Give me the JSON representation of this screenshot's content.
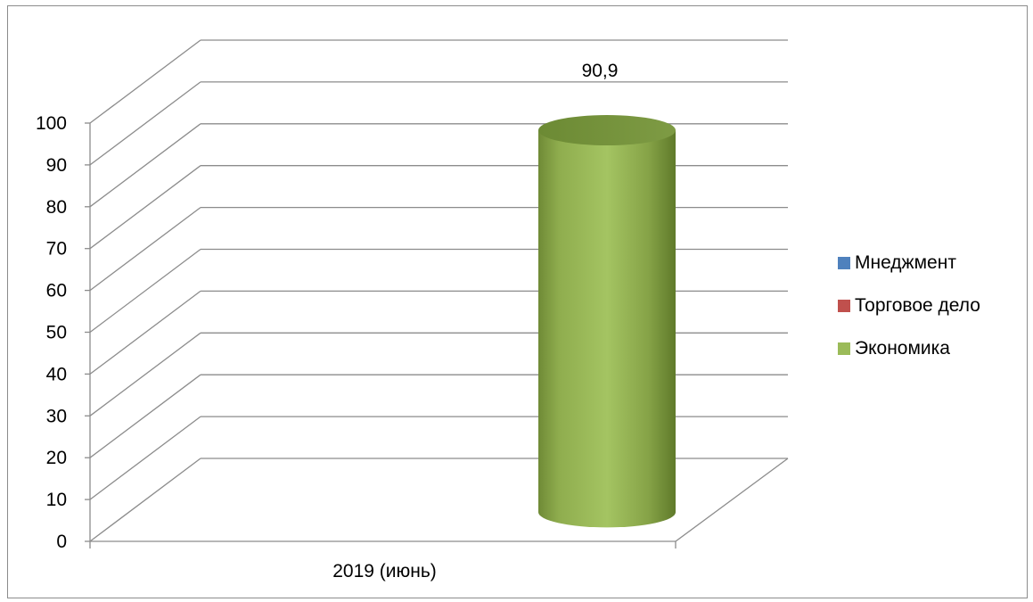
{
  "chart_data": {
    "type": "bar",
    "subtype": "3d-cylinder",
    "categories": [
      "2019 (июнь)"
    ],
    "series": [
      {
        "name": "Мнеджмент",
        "values": [
          null
        ],
        "color": "#4f81bd"
      },
      {
        "name": "Торговое дело",
        "values": [
          null
        ],
        "color": "#c0504d"
      },
      {
        "name": "Экономика",
        "values": [
          90.9
        ],
        "color": "#9bbb59"
      }
    ],
    "data_labels": [
      "90,9"
    ],
    "ylim": [
      0,
      100
    ],
    "yticks": [
      "0",
      "10",
      "20",
      "30",
      "40",
      "50",
      "60",
      "70",
      "80",
      "90",
      "100"
    ],
    "grid": true,
    "legend_position": "right"
  }
}
